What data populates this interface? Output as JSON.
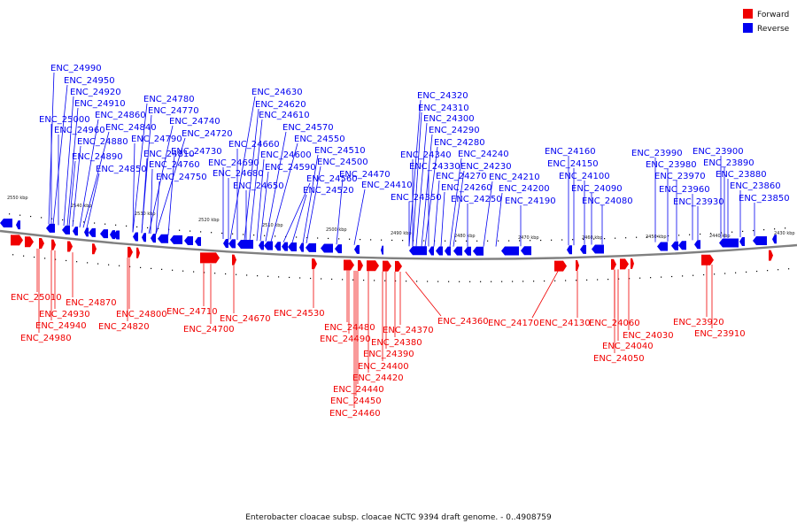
{
  "legend": {
    "forward": {
      "label": "Forward",
      "color": "#f00000"
    },
    "reverse": {
      "label": "Reverse",
      "color": "#0000f0"
    }
  },
  "caption": "Enterobacter cloacae subsp. cloacae NCTC 9394 draft genome. - 0..4908759",
  "ticks": [
    "2550 kbp",
    "2540 kbp",
    "2530 kbp",
    "2520 kbp",
    "2510 kbp",
    "2500 kbp",
    "2490 kbp",
    "2480 kbp",
    "2470 kbp",
    "2460 kbp",
    "2450 kbp",
    "2440 kbp",
    "2430 kbp"
  ],
  "reverse_labels": [
    "ENC_24990",
    "ENC_24950",
    "ENC_24920",
    "ENC_24910",
    "ENC_25000",
    "ENC_24960",
    "ENC_24860",
    "ENC_24880",
    "ENC_24890",
    "ENC_24840",
    "ENC_24850",
    "ENC_24780",
    "ENC_24770",
    "ENC_24740",
    "ENC_24720",
    "ENC_24790",
    "ENC_24810",
    "ENC_24730",
    "ENC_24760",
    "ENC_24750",
    "ENC_24630",
    "ENC_24620",
    "ENC_24610",
    "ENC_24570",
    "ENC_24660",
    "ENC_24550",
    "ENC_24690",
    "ENC_24600",
    "ENC_24680",
    "ENC_24590",
    "ENC_24510",
    "ENC_24650",
    "ENC_24560",
    "ENC_24500",
    "ENC_24470",
    "ENC_24520",
    "ENC_24410",
    "ENC_24320",
    "ENC_24310",
    "ENC_24300",
    "ENC_24290",
    "ENC_24280",
    "ENC_24340",
    "ENC_24240",
    "ENC_24330",
    "ENC_24230",
    "ENC_24210",
    "ENC_24270",
    "ENC_24260",
    "ENC_24350",
    "ENC_24250",
    "ENC_24200",
    "ENC_24190",
    "ENC_24160",
    "ENC_24150",
    "ENC_24100",
    "ENC_24090",
    "ENC_24080",
    "ENC_23990",
    "ENC_23900",
    "ENC_23980",
    "ENC_23890",
    "ENC_23970",
    "ENC_23880",
    "ENC_23960",
    "ENC_23860",
    "ENC_23930",
    "ENC_23850"
  ],
  "forward_labels": [
    "ENC_25010",
    "ENC_24870",
    "ENC_24930",
    "ENC_24940",
    "ENC_24980",
    "ENC_24800",
    "ENC_24820",
    "ENC_24710",
    "ENC_24700",
    "ENC_24670",
    "ENC_24530",
    "ENC_24480",
    "ENC_24490",
    "ENC_24370",
    "ENC_24380",
    "ENC_24390",
    "ENC_24400",
    "ENC_24420",
    "ENC_24440",
    "ENC_24450",
    "ENC_24460",
    "ENC_24360",
    "ENC_24170",
    "ENC_24130",
    "ENC_24060",
    "ENC_24040",
    "ENC_24030",
    "ENC_24050",
    "ENC_23920",
    "ENC_23910"
  ]
}
